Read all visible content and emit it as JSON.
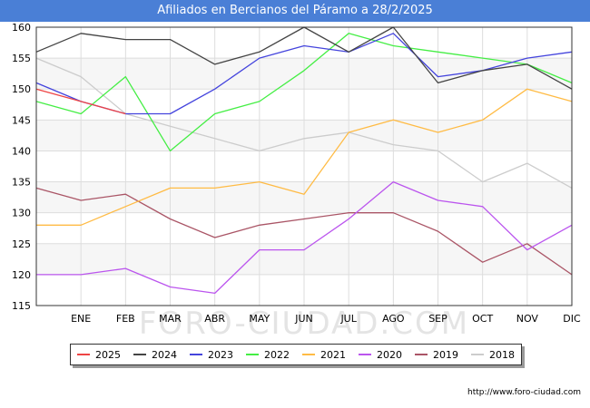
{
  "title": "Afiliados en Bercianos del Páramo a 28/2/2025",
  "source": "http://www.foro-ciudad.com",
  "watermark": "FORO-CIUDAD.COM",
  "chart_data": {
    "type": "line",
    "categories": [
      "",
      "ENE",
      "FEB",
      "MAR",
      "ABR",
      "MAY",
      "JUN",
      "JUL",
      "AGO",
      "SEP",
      "OCT",
      "NOV",
      "DIC"
    ],
    "ylim": [
      115,
      160
    ],
    "yticks": [
      115,
      120,
      125,
      130,
      135,
      140,
      145,
      150,
      155,
      160
    ],
    "grid": true,
    "legend_position": "bottom",
    "series": [
      {
        "name": "2025",
        "color": "#ee4444",
        "values": [
          150,
          148,
          146,
          null,
          null,
          null,
          null,
          null,
          null,
          null,
          null,
          null,
          null
        ]
      },
      {
        "name": "2024",
        "color": "#444444",
        "values": [
          156,
          159,
          158,
          158,
          154,
          156,
          160,
          156,
          160,
          151,
          153,
          154,
          150
        ]
      },
      {
        "name": "2023",
        "color": "#4444dd",
        "values": [
          151,
          148,
          146,
          146,
          150,
          155,
          157,
          156,
          159,
          152,
          153,
          155,
          156
        ]
      },
      {
        "name": "2022",
        "color": "#44ee44",
        "values": [
          148,
          146,
          152,
          140,
          146,
          148,
          153,
          159,
          157,
          156,
          155,
          154,
          151
        ]
      },
      {
        "name": "2021",
        "color": "#ffbb44",
        "values": [
          128,
          128,
          131,
          134,
          134,
          135,
          133,
          143,
          145,
          143,
          145,
          150,
          148
        ]
      },
      {
        "name": "2020",
        "color": "#bb55ee",
        "values": [
          120,
          120,
          121,
          118,
          117,
          124,
          124,
          129,
          135,
          132,
          131,
          124,
          128
        ]
      },
      {
        "name": "2019",
        "color": "#aa5566",
        "values": [
          134,
          132,
          133,
          129,
          126,
          128,
          129,
          130,
          130,
          127,
          122,
          125,
          120
        ]
      },
      {
        "name": "2018",
        "color": "#cccccc",
        "values": [
          155,
          152,
          146,
          144,
          142,
          140,
          142,
          143,
          141,
          140,
          135,
          138,
          134
        ]
      }
    ]
  }
}
